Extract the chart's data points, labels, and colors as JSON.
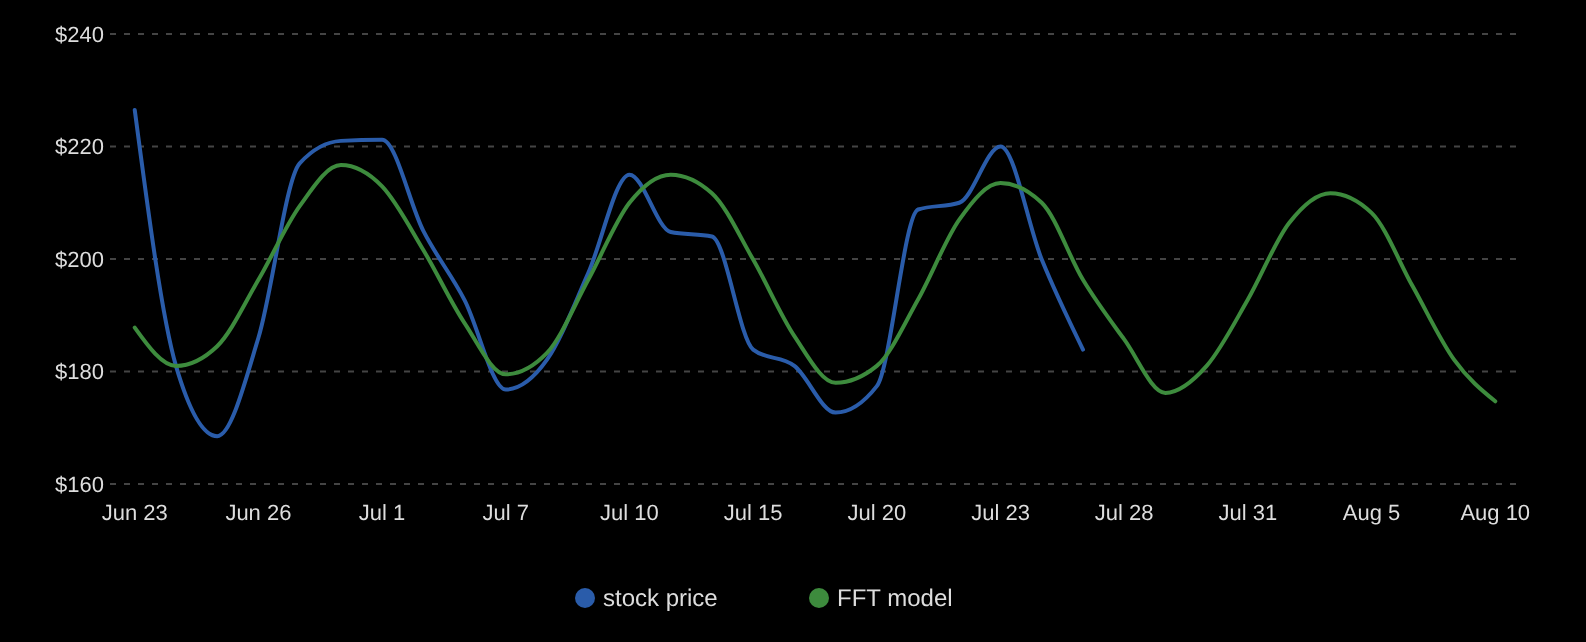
{
  "chart_data": {
    "type": "line",
    "categories": [
      "Jun 23",
      null,
      null,
      "Jun 26",
      null,
      null,
      "Jul 1",
      null,
      null,
      "Jul 7",
      null,
      null,
      "Jul 10",
      null,
      null,
      "Jul 15",
      null,
      null,
      "Jul 20",
      null,
      null,
      "Jul 23",
      null,
      null,
      "Jul 28",
      null,
      null,
      "Jul 31",
      null,
      null,
      "Aug 5",
      null,
      null,
      "Aug 10"
    ],
    "series": [
      {
        "name": "stock price",
        "color": "#2a5caa",
        "values": [
          226.5,
          181,
          168.5,
          186,
          217,
          221,
          221.2,
          205,
          192.7,
          176.8,
          182.1,
          197.5,
          215,
          204.8,
          204,
          183.9,
          181,
          172.7,
          177.4,
          208.8,
          210,
          220,
          199.9,
          183.9,
          null,
          null,
          null,
          null,
          null,
          null,
          null,
          null,
          null,
          null
        ]
      },
      {
        "name": "FFT model",
        "color": "#3d8b3d",
        "values": [
          187.8,
          181,
          184.5,
          196.3,
          209.4,
          216.7,
          212.9,
          201.6,
          188.6,
          179.5,
          183.3,
          196.3,
          210,
          215,
          211.7,
          199.9,
          186.3,
          178,
          181,
          192.8,
          207,
          213.5,
          210,
          196.3,
          185.7,
          176.2,
          181,
          192.8,
          206.4,
          211.7,
          208.2,
          195.1,
          182.1,
          174.7
        ]
      }
    ],
    "ylim": [
      160,
      240
    ],
    "yticks": [
      {
        "value": 160,
        "label": "$160"
      },
      {
        "value": 180,
        "label": "$180"
      },
      {
        "value": 200,
        "label": "$200"
      },
      {
        "value": 220,
        "label": "$220"
      },
      {
        "value": 240,
        "label": "$240"
      }
    ],
    "grid": "y",
    "legend": "bottom",
    "marker": "none",
    "line_style": "solid"
  }
}
